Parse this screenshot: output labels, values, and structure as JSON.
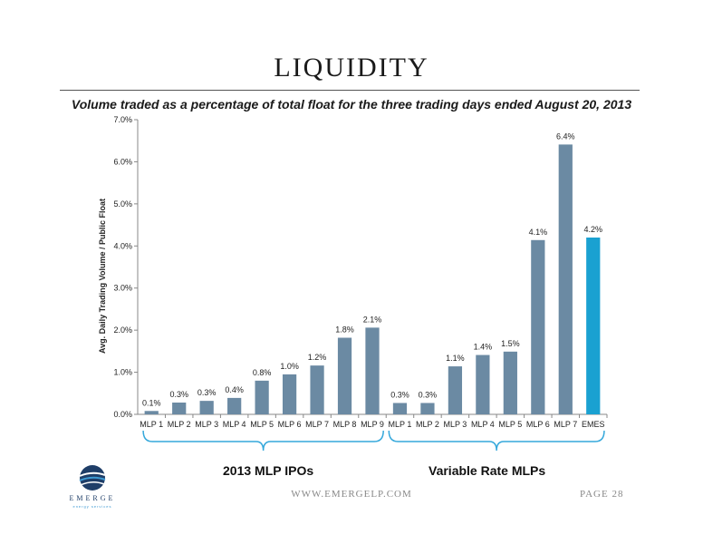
{
  "slide": {
    "title": "LIQUIDITY",
    "subtitle": "Volume traded as a percentage of total float for the three trading days ended August 20, 2013",
    "footer_url": "WWW.EMERGELP.COM",
    "page_label": "PAGE 28"
  },
  "logo": {
    "wordmark": "EMERGE",
    "tagline": "energy services"
  },
  "groups": [
    {
      "label": "2013 MLP IPOs"
    },
    {
      "label": "Variable Rate MLPs"
    }
  ],
  "colors": {
    "bar": "#6b8aa3",
    "highlight": "#1aa1d1",
    "brace": "#35a8db"
  },
  "chart_data": {
    "type": "bar",
    "ylabel": "Avg. Daily Trading Volume / Public Float",
    "xlabel": "",
    "ylim": [
      0,
      7
    ],
    "yticks": [
      "0.0%",
      "1.0%",
      "2.0%",
      "3.0%",
      "4.0%",
      "5.0%",
      "6.0%",
      "7.0%"
    ],
    "grid": false,
    "categories": [
      "MLP 1",
      "MLP 2",
      "MLP 3",
      "MLP 4",
      "MLP 5",
      "MLP 6",
      "MLP 7",
      "MLP 8",
      "MLP 9",
      "MLP 1",
      "MLP 2",
      "MLP 3",
      "MLP 4",
      "MLP 5",
      "MLP 6",
      "MLP 7",
      "EMES"
    ],
    "values": [
      0.08,
      0.28,
      0.32,
      0.39,
      0.8,
      0.95,
      1.16,
      1.82,
      2.06,
      0.27,
      0.27,
      1.14,
      1.41,
      1.49,
      4.14,
      6.41,
      4.2
    ],
    "labels": [
      "0.1%",
      "0.3%",
      "0.3%",
      "0.4%",
      "0.8%",
      "1.0%",
      "1.2%",
      "1.8%",
      "2.1%",
      "0.3%",
      "0.3%",
      "1.1%",
      "1.4%",
      "1.5%",
      "4.1%",
      "6.4%",
      "4.2%"
    ],
    "highlight_index": 16
  }
}
